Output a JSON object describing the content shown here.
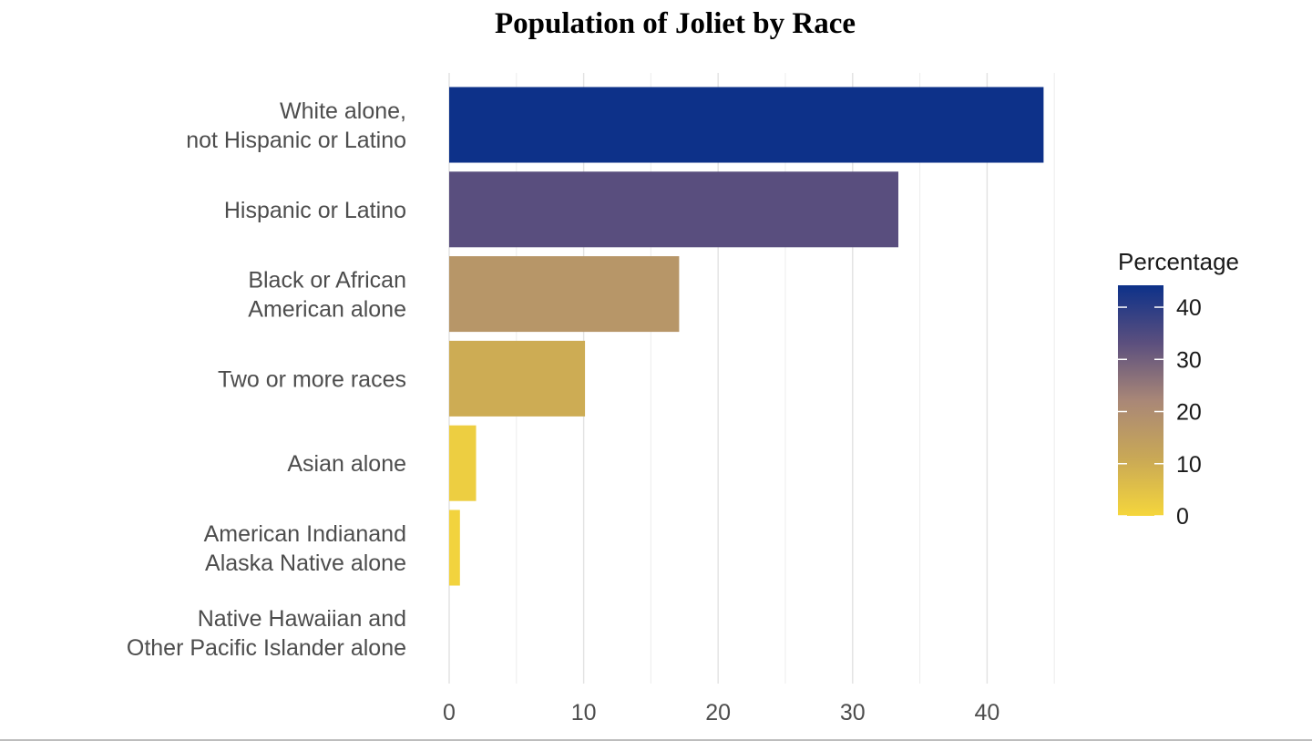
{
  "chart_data": {
    "type": "bar",
    "orientation": "horizontal",
    "title": "Population of Joliet by Race",
    "categories": [
      [
        "White alone,",
        "not Hispanic or Latino"
      ],
      [
        "Hispanic or Latino"
      ],
      [
        "Black or African",
        "American alone"
      ],
      [
        "Two or more races"
      ],
      [
        "Asian alone"
      ],
      [
        "American Indianand",
        "Alaska Native alone"
      ],
      [
        "Native Hawaiian and",
        "Other Pacific Islander alone"
      ]
    ],
    "values": [
      44.2,
      33.4,
      17.1,
      10.1,
      2.0,
      0.8,
      0.0
    ],
    "xlim": [
      0,
      45
    ],
    "x_ticks": [
      "0",
      "10",
      "20",
      "30",
      "40"
    ],
    "grid": true,
    "legend": {
      "title": "Percentage",
      "placement": "right",
      "ticks": [
        "0",
        "10",
        "20",
        "30",
        "40"
      ],
      "range": [
        0,
        44.2
      ],
      "colors": [
        "#f5d63c",
        "#c9a856",
        "#a98777",
        "#5b4f7e",
        "#0d3189"
      ]
    }
  }
}
